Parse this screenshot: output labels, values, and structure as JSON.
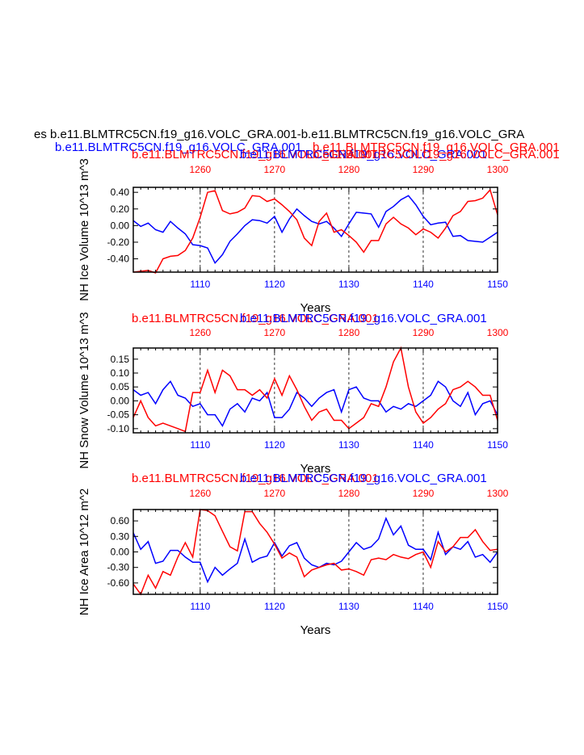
{
  "figure": {
    "main_title": "es b.e11.BLMTRC5CN.f19_g16.VOLC_GRA.001-b.e11.BLMTRC5CN.f19_g16.VOLC_GRA",
    "run_blue_label": "b.e11.BLMTRC5CN.f19_g16.VOLC_GRA.001",
    "run_red_label": "b.e11.BLMTRC5CN.f19_g16.VOLC_GRA.001"
  },
  "colors": {
    "blue": "#0000ff",
    "red": "#ff0000",
    "axis": "#000000"
  },
  "chart_data": [
    {
      "type": "line",
      "ylabel": "NH Ice Volume 10^13 m^3",
      "xlabel": "Years",
      "xlim_bottom": [
        1101,
        1150
      ],
      "xlim_top": [
        1251,
        1300
      ],
      "x_ticks_bottom": [
        "1110",
        "1120",
        "1130",
        "1140",
        "1150"
      ],
      "x_ticks_top": [
        "1260",
        "1270",
        "1280",
        "1290",
        "1300"
      ],
      "ylim": [
        -0.56,
        0.46
      ],
      "y_ticks": [
        "0.40",
        "0.20",
        "0.00",
        "-0.20",
        "-0.40"
      ],
      "y_tick_values": [
        0.4,
        0.2,
        0.0,
        -0.2,
        -0.4
      ],
      "title_top_blue": "b.e11.BLMTRC5CN.f19_g16.VOLC_GRA.001",
      "title_top_red": "b.e11.BLMTRC5CN.f19_g16.VOLC_GRA.001",
      "title_top_blue2": "b.e11.BLMTRC5CN.f19_g16.VOLC_GRA.001",
      "series": [
        {
          "color": "blue",
          "axis": "bottom",
          "x": [
            1101,
            1102,
            1103,
            1104,
            1105,
            1106,
            1107,
            1108,
            1109,
            1110,
            1111,
            1112,
            1113,
            1114,
            1115,
            1116,
            1117,
            1118,
            1119,
            1120,
            1121,
            1122,
            1123,
            1124,
            1125,
            1126,
            1127,
            1128,
            1129,
            1130,
            1131,
            1132,
            1133,
            1134,
            1135,
            1136,
            1137,
            1138,
            1139,
            1140,
            1141,
            1142,
            1143,
            1144,
            1145,
            1146,
            1147,
            1148,
            1149,
            1150
          ],
          "values": [
            0.06,
            -0.01,
            0.03,
            -0.05,
            -0.08,
            0.05,
            -0.03,
            -0.1,
            -0.23,
            -0.24,
            -0.27,
            -0.45,
            -0.35,
            -0.19,
            -0.1,
            0.0,
            0.07,
            0.06,
            0.03,
            0.11,
            -0.08,
            0.08,
            0.2,
            0.12,
            0.05,
            0.02,
            0.05,
            -0.03,
            -0.13,
            0.02,
            0.16,
            0.15,
            0.14,
            -0.02,
            0.17,
            0.23,
            0.31,
            0.36,
            0.25,
            0.11,
            0.01,
            0.03,
            0.04,
            -0.13,
            -0.12,
            -0.18,
            -0.19,
            -0.2,
            -0.14,
            -0.08
          ]
        },
        {
          "color": "red",
          "axis": "top",
          "x": [
            1251,
            1252,
            1253,
            1254,
            1255,
            1256,
            1257,
            1258,
            1259,
            1260,
            1261,
            1262,
            1263,
            1264,
            1265,
            1266,
            1267,
            1268,
            1269,
            1270,
            1271,
            1272,
            1273,
            1274,
            1275,
            1276,
            1277,
            1278,
            1279,
            1280,
            1281,
            1282,
            1283,
            1284,
            1285,
            1286,
            1287,
            1288,
            1289,
            1290,
            1291,
            1292,
            1293,
            1294,
            1295,
            1296,
            1297,
            1298,
            1299,
            1300
          ],
          "values": [
            -0.56,
            -0.55,
            -0.54,
            -0.57,
            -0.4,
            -0.37,
            -0.36,
            -0.3,
            -0.15,
            0.1,
            0.4,
            0.42,
            0.18,
            0.14,
            0.16,
            0.21,
            0.36,
            0.35,
            0.29,
            0.32,
            0.25,
            0.17,
            0.07,
            -0.15,
            -0.24,
            0.05,
            0.15,
            -0.08,
            -0.05,
            -0.12,
            -0.2,
            -0.32,
            -0.18,
            -0.18,
            0.02,
            0.1,
            0.02,
            -0.03,
            -0.11,
            -0.04,
            -0.08,
            -0.15,
            -0.03,
            0.12,
            0.17,
            0.29,
            0.3,
            0.33,
            0.43,
            0.13
          ]
        }
      ]
    },
    {
      "type": "line",
      "ylabel": "NH Snow Volume 10^13 m^3",
      "xlabel": "Years",
      "xlim_bottom": [
        1101,
        1150
      ],
      "xlim_top": [
        1251,
        1300
      ],
      "x_ticks_bottom": [
        "1110",
        "1120",
        "1130",
        "1140",
        "1150"
      ],
      "x_ticks_top": [
        "1260",
        "1270",
        "1280",
        "1290",
        "1300"
      ],
      "ylim": [
        -0.115,
        0.19
      ],
      "y_ticks": [
        "0.15",
        "0.10",
        "0.05",
        "0.00",
        "-0.05",
        "-0.10"
      ],
      "y_tick_values": [
        0.15,
        0.1,
        0.05,
        0.0,
        -0.05,
        -0.1
      ],
      "title_top_blue": "b.e11.BLMTRC5CN.f19_g16.VOLC_GRA.001",
      "title_top_red": "b.e11.BLMTRC5CN.f19_g16.VOLC_GRA.001",
      "series": [
        {
          "color": "blue",
          "axis": "bottom",
          "x": [
            1101,
            1102,
            1103,
            1104,
            1105,
            1106,
            1107,
            1108,
            1109,
            1110,
            1111,
            1112,
            1113,
            1114,
            1115,
            1116,
            1117,
            1118,
            1119,
            1120,
            1121,
            1122,
            1123,
            1124,
            1125,
            1126,
            1127,
            1128,
            1129,
            1130,
            1131,
            1132,
            1133,
            1134,
            1135,
            1136,
            1137,
            1138,
            1139,
            1140,
            1141,
            1142,
            1143,
            1144,
            1145,
            1146,
            1147,
            1148,
            1149,
            1150
          ],
          "values": [
            0.04,
            0.02,
            0.03,
            -0.01,
            0.04,
            0.07,
            0.02,
            0.01,
            -0.02,
            -0.01,
            -0.05,
            -0.05,
            -0.09,
            -0.03,
            -0.01,
            -0.04,
            0.01,
            0.0,
            0.03,
            -0.06,
            -0.06,
            -0.03,
            0.03,
            0.01,
            -0.02,
            0.01,
            0.03,
            0.04,
            -0.04,
            0.04,
            0.05,
            0.01,
            0.0,
            0.0,
            -0.04,
            -0.02,
            -0.03,
            -0.01,
            -0.02,
            0.0,
            0.02,
            0.07,
            0.05,
            0.0,
            -0.02,
            0.03,
            -0.05,
            -0.01,
            0.0,
            -0.05
          ]
        },
        {
          "color": "red",
          "axis": "top",
          "x": [
            1251,
            1252,
            1253,
            1254,
            1255,
            1256,
            1257,
            1258,
            1259,
            1260,
            1261,
            1262,
            1263,
            1264,
            1265,
            1266,
            1267,
            1268,
            1269,
            1270,
            1271,
            1272,
            1273,
            1274,
            1275,
            1276,
            1277,
            1278,
            1279,
            1280,
            1281,
            1282,
            1283,
            1284,
            1285,
            1286,
            1287,
            1288,
            1289,
            1290,
            1291,
            1292,
            1293,
            1294,
            1295,
            1296,
            1297,
            1298,
            1299,
            1300
          ],
          "values": [
            -0.06,
            0.0,
            -0.06,
            -0.09,
            -0.08,
            -0.09,
            -0.1,
            -0.11,
            0.03,
            0.03,
            0.11,
            0.03,
            0.11,
            0.09,
            0.04,
            0.04,
            0.02,
            0.04,
            0.01,
            0.08,
            0.02,
            0.09,
            0.04,
            -0.02,
            -0.07,
            -0.04,
            -0.03,
            -0.07,
            -0.07,
            -0.1,
            -0.08,
            -0.06,
            -0.01,
            -0.02,
            0.05,
            0.14,
            0.19,
            0.05,
            -0.04,
            -0.08,
            -0.06,
            -0.03,
            -0.01,
            0.04,
            0.05,
            0.07,
            0.05,
            0.02,
            0.02,
            -0.07
          ]
        }
      ]
    },
    {
      "type": "line",
      "ylabel": "NH Ice Area 10^12 m^2",
      "xlabel": "Years",
      "xlim_bottom": [
        1101,
        1150
      ],
      "xlim_top": [
        1251,
        1300
      ],
      "x_ticks_bottom": [
        "1110",
        "1120",
        "1130",
        "1140",
        "1150"
      ],
      "x_ticks_top": [
        "1260",
        "1270",
        "1280",
        "1290",
        "1300"
      ],
      "ylim": [
        -0.82,
        0.82
      ],
      "y_ticks": [
        "0.60",
        "0.30",
        "0.00",
        "-0.30",
        "-0.60"
      ],
      "y_tick_values": [
        0.6,
        0.3,
        0.0,
        -0.3,
        -0.6
      ],
      "title_top_blue": "b.e11.BLMTRC5CN.f19_g16.VOLC_GRA.001",
      "title_top_red": "b.e11.BLMTRC5CN.f19_g16.VOLC_GRA.001",
      "series": [
        {
          "color": "blue",
          "axis": "bottom",
          "x": [
            1101,
            1102,
            1103,
            1104,
            1105,
            1106,
            1107,
            1108,
            1109,
            1110,
            1111,
            1112,
            1113,
            1114,
            1115,
            1116,
            1117,
            1118,
            1119,
            1120,
            1121,
            1122,
            1123,
            1124,
            1125,
            1126,
            1127,
            1128,
            1129,
            1130,
            1131,
            1132,
            1133,
            1134,
            1135,
            1136,
            1137,
            1138,
            1139,
            1140,
            1141,
            1142,
            1143,
            1144,
            1145,
            1146,
            1147,
            1148,
            1149,
            1150
          ],
          "values": [
            0.37,
            0.05,
            0.2,
            -0.22,
            -0.18,
            0.03,
            0.03,
            -0.1,
            -0.2,
            -0.2,
            -0.58,
            -0.3,
            -0.45,
            -0.33,
            -0.22,
            0.25,
            -0.2,
            -0.12,
            -0.08,
            0.18,
            -0.08,
            0.12,
            0.18,
            -0.12,
            -0.25,
            -0.3,
            -0.22,
            -0.25,
            -0.18,
            0.0,
            0.18,
            0.05,
            0.1,
            0.25,
            0.65,
            0.33,
            0.5,
            0.13,
            0.05,
            0.05,
            -0.15,
            0.38,
            -0.05,
            0.1,
            0.05,
            0.2,
            -0.1,
            -0.05,
            -0.2,
            0.0
          ]
        },
        {
          "color": "red",
          "axis": "top",
          "x": [
            1251,
            1252,
            1253,
            1254,
            1255,
            1256,
            1257,
            1258,
            1259,
            1260,
            1261,
            1262,
            1263,
            1264,
            1265,
            1266,
            1267,
            1268,
            1269,
            1270,
            1271,
            1272,
            1273,
            1274,
            1275,
            1276,
            1277,
            1278,
            1279,
            1280,
            1281,
            1282,
            1283,
            1284,
            1285,
            1286,
            1287,
            1288,
            1289,
            1290,
            1291,
            1292,
            1293,
            1294,
            1295,
            1296,
            1297,
            1298,
            1299,
            1300
          ],
          "values": [
            -0.62,
            -0.82,
            -0.45,
            -0.7,
            -0.38,
            -0.45,
            -0.1,
            0.18,
            -0.1,
            0.82,
            0.8,
            0.7,
            0.4,
            0.1,
            0.02,
            0.78,
            0.78,
            0.55,
            0.38,
            0.15,
            -0.12,
            -0.02,
            -0.1,
            -0.48,
            -0.35,
            -0.3,
            -0.25,
            -0.22,
            -0.35,
            -0.33,
            -0.38,
            -0.45,
            -0.15,
            -0.12,
            -0.15,
            -0.05,
            -0.1,
            -0.13,
            -0.05,
            0.0,
            -0.3,
            0.2,
            0.0,
            0.1,
            0.28,
            0.28,
            0.43,
            0.2,
            0.03,
            0.05
          ]
        }
      ]
    }
  ]
}
